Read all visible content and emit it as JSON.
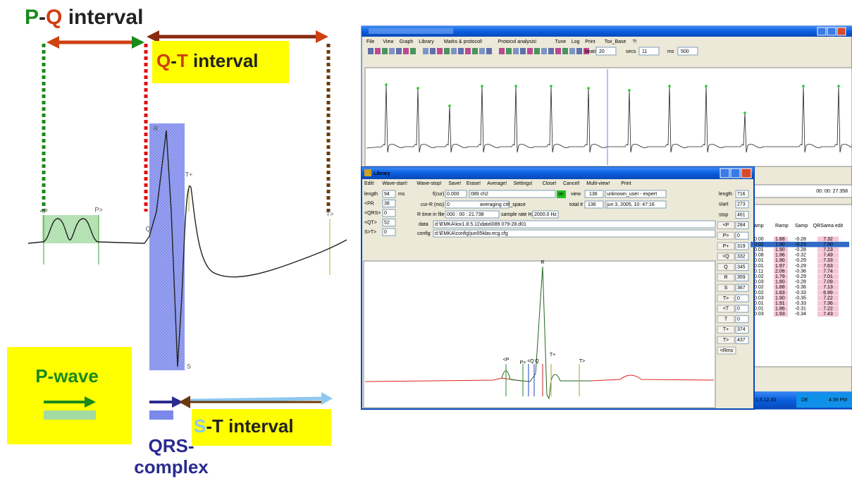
{
  "ecg_diagram": {
    "pq_interval": [
      "P",
      "-",
      "Q",
      " interval"
    ],
    "qt_interval": [
      "Q",
      "-",
      "T",
      " interval"
    ],
    "p_wave": "P-wave",
    "st_interval": [
      "S",
      "-",
      "T",
      " interval"
    ],
    "qrs_complex": [
      "QRS-",
      "complex"
    ],
    "markers": {
      "p_start": "<P",
      "p_end": "P>",
      "q": "Q",
      "r": "R",
      "t_peak": "T+",
      "t_end": "T>",
      "s": "S"
    }
  },
  "software": {
    "menu": [
      "File",
      "View",
      "Graph",
      "Library",
      "Marks & protocol!",
      "Protocol analysis!",
      "Tune",
      "Log",
      "Print",
      "Tox_Base",
      "?!"
    ],
    "toolbar": {
      "beats_label": "beats",
      "beats": "20",
      "secs_label": "secs",
      "secs": "11",
      "ms_label": "ms",
      "ms": "500"
    },
    "time": "00: 00: 27.358",
    "table": {
      "columns": [
        "amp",
        "Ramp",
        "Samp",
        "QRSarea edit"
      ],
      "rows": [
        [
          "0.00",
          "1.88",
          "-0.28",
          "7.32"
        ],
        [
          "0.02",
          "1.90",
          "-0.23",
          "7.50"
        ],
        [
          "0.01",
          "1.90",
          "-0.28",
          "7.23"
        ],
        [
          "0.08",
          "1.96",
          "-0.32",
          "7.49"
        ],
        [
          "0.01",
          "1.90",
          "-0.29",
          "7.33"
        ],
        [
          "0.01",
          "1.97",
          "-0.29",
          "7.63"
        ],
        [
          "0.11",
          "2.06",
          "-0.36",
          "7.74"
        ],
        [
          "0.02",
          "1.79",
          "-0.29",
          "7.01"
        ],
        [
          "0.03",
          "1.80",
          "-0.28",
          "7.09"
        ],
        [
          "0.02",
          "1.88",
          "-0.36",
          "7.13"
        ],
        [
          "0.02",
          "1.83",
          "-0.33",
          "6.99"
        ],
        [
          "0.03",
          "1.90",
          "-0.35",
          "7.22"
        ],
        [
          "0.01",
          "1.91",
          "-0.33",
          "7.36"
        ],
        [
          "0.01",
          "1.86",
          "-0.31",
          "7.22"
        ],
        [
          "0.03",
          "1.93",
          "-0.34",
          "7.43"
        ]
      ]
    },
    "library": {
      "title": "Library",
      "menu": [
        "Edit!",
        "Wave-start!",
        "Wave-stop!",
        "Save!",
        "Erase!",
        "Average!",
        "Settings!",
        "Close!",
        "Cancel!",
        "Multi-view!",
        "Print"
      ],
      "left_fields": [
        {
          "label": "length",
          "value": "94",
          "unit": "ms"
        },
        {
          "label": "<PR",
          "value": "38"
        },
        {
          "label": "<QRS>",
          "value": "0"
        },
        {
          "label": "<QT>",
          "value": "52"
        },
        {
          "label": "S>T>",
          "value": "0"
        }
      ],
      "info": {
        "fcur_label": "f(cur)",
        "fcur": "0.000",
        "channel": "089 ch2",
        "on": "on",
        "view_label": "view",
        "view": "136",
        "user": "unknown_user - expert",
        "cur_r_label": "cur-R (ms)",
        "cur_r": "0",
        "averaging_label": "averaging",
        "averaging": "ctrl_space",
        "total_label": "total #",
        "total": "136",
        "date": "jun  3, 2005, 10: 47:16",
        "rtime_label": "R time in file",
        "rtime": "000 : 00 : 21.738",
        "rate_label": "sample rate Hz",
        "rate": "2000.0 Hz",
        "data_label": "data",
        "data": "d:\\EMKA\\iox1.8.5.11\\data\\089 079-28.d01",
        "config_label": "config",
        "config": "d:\\EMKA\\config\\jun05klav.ecg.cfg"
      },
      "right_fields": [
        {
          "label": "length",
          "value": "716"
        },
        {
          "label": "start",
          "value": "273"
        },
        {
          "label": "stop",
          "value": "461"
        },
        {
          "label": "<P",
          "value": "284"
        },
        {
          "label": "P>",
          "value": "0"
        },
        {
          "label": "P+",
          "value": "319"
        },
        {
          "label": "<Q",
          "value": "332"
        },
        {
          "label": "Q",
          "value": "345"
        },
        {
          "label": "R",
          "value": "359"
        },
        {
          "label": "S",
          "value": "367"
        },
        {
          "label": "T>",
          "value": "0"
        },
        {
          "label": "<T",
          "value": "0"
        },
        {
          "label": "T",
          "value": "0"
        },
        {
          "label": "T+",
          "value": "374"
        },
        {
          "label": "T>",
          "value": "437"
        }
      ],
      "rms_button": "<Rms",
      "wave_labels": {
        "r": "R",
        "p_start": "<P",
        "p_end": "P>",
        "q_start": "<Q",
        "q": "Q",
        "t_peak": "T+",
        "t_end": "T>"
      }
    },
    "taskbar": {
      "version": "1.5.12.33",
      "lang": "DE",
      "clock": "4:39 PM"
    }
  }
}
